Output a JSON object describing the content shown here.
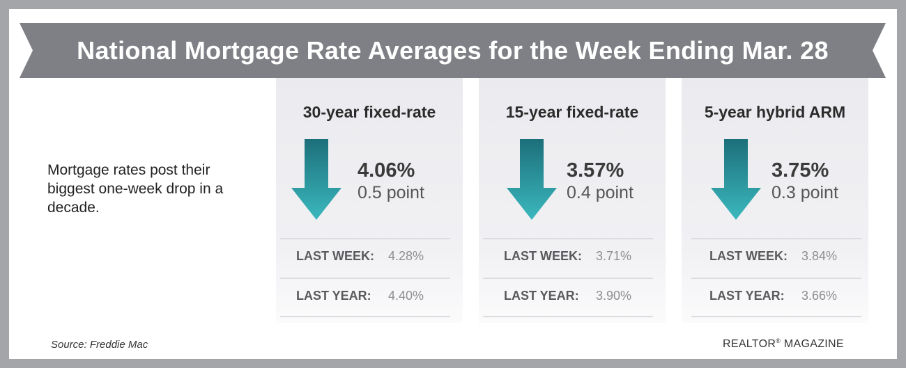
{
  "title": "National Mortgage Rate Averages for the Week Ending Mar. 28",
  "intro": "Mortgage rates post their biggest one-week drop in a decade.",
  "colors": {
    "banner": "#7f8085",
    "arrow_top": "#1c6f7a",
    "arrow_bottom": "#3bb8be",
    "frame": "#a4a5a9"
  },
  "panels": [
    {
      "heading": "30-year fixed-rate",
      "rate": "4.06%",
      "change": "0.5 point",
      "direction_icon": "arrow-down-icon",
      "last_week_label": "LAST WEEK:",
      "last_week": "4.28%",
      "last_year_label": "LAST YEAR:",
      "last_year": "4.40%"
    },
    {
      "heading": "15-year fixed-rate",
      "rate": "3.57%",
      "change": "0.4 point",
      "direction_icon": "arrow-down-icon",
      "last_week_label": "LAST WEEK:",
      "last_week": "3.71%",
      "last_year_label": "LAST YEAR:",
      "last_year": "3.90%"
    },
    {
      "heading": "5-year hybrid ARM",
      "rate": "3.75%",
      "change": "0.3 point",
      "direction_icon": "arrow-down-icon",
      "last_week_label": "LAST WEEK:",
      "last_week": "3.84%",
      "last_year_label": "LAST YEAR:",
      "last_year": "3.66%"
    }
  ],
  "footer": {
    "source": "Source: Freddie Mac",
    "brand": "REALTOR",
    "brand_mark": "®",
    "brand_suffix": " MAGAZINE"
  }
}
